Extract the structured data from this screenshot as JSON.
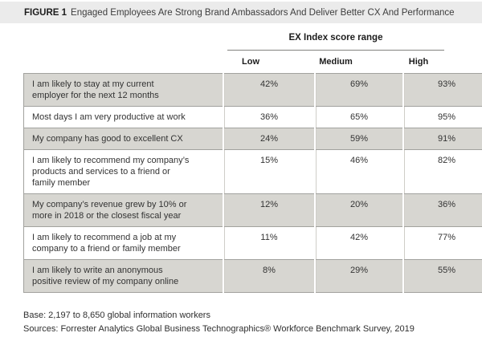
{
  "figure": {
    "label": "FIGURE 1",
    "title": "Engaged Employees Are Strong Brand Ambassadors And Deliver Better CX And Performance"
  },
  "table": {
    "group_header": "EX Index score range",
    "columns": [
      "Low",
      "Medium",
      "High"
    ],
    "rows": [
      {
        "statement": "I am likely to stay at my current\nemployer for the next 12 months",
        "low": "42%",
        "medium": "69%",
        "high": "93%"
      },
      {
        "statement": "Most days I am very productive at work",
        "low": "36%",
        "medium": "65%",
        "high": "95%"
      },
      {
        "statement": "My company has good to excellent CX",
        "low": "24%",
        "medium": "59%",
        "high": "91%"
      },
      {
        "statement": "I am likely to recommend my company’s\nproducts and services to a friend or\nfamily member",
        "low": "15%",
        "medium": "46%",
        "high": "82%"
      },
      {
        "statement": "My company’s revenue grew by 10% or\nmore in 2018 or the closest fiscal year",
        "low": "12%",
        "medium": "20%",
        "high": "36%"
      },
      {
        "statement": "I am likely to recommend a job at my\ncompany to a friend or family member",
        "low": "11%",
        "medium": "42%",
        "high": "77%"
      },
      {
        "statement": "I am likely to write an anonymous\npositive review of my company online",
        "low": "8%",
        "medium": "29%",
        "high": "55%"
      }
    ]
  },
  "footer": {
    "base": "Base: 2,197 to 8,650 global information workers",
    "sources": "Sources: Forrester Analytics Global Business Technographics® Workforce Benchmark Survey, 2019"
  },
  "colors": {
    "title_bar_bg": "#ebebeb",
    "row_alt_bg": "#d7d6d1",
    "row_bg": "#ffffff",
    "border": "#a2a29e",
    "text": "#333333"
  },
  "chart_data": {
    "type": "table",
    "title": "FIGURE 1 Engaged Employees Are Strong Brand Ambassadors And Deliver Better CX And Performance",
    "group_header": "EX Index score range",
    "categories": [
      "I am likely to stay at my current employer for the next 12 months",
      "Most days I am very productive at work",
      "My company has good to excellent CX",
      "I am likely to recommend my company’s products and services to a friend or family member",
      "My company’s revenue grew by 10% or more in 2018 or the closest fiscal year",
      "I am likely to recommend a job at my company to a friend or family member",
      "I am likely to write an anonymous positive review of my company online"
    ],
    "series": [
      {
        "name": "Low",
        "values": [
          42,
          36,
          24,
          15,
          12,
          11,
          8
        ]
      },
      {
        "name": "Medium",
        "values": [
          69,
          65,
          59,
          46,
          20,
          42,
          29
        ]
      },
      {
        "name": "High",
        "values": [
          93,
          95,
          91,
          82,
          36,
          77,
          55
        ]
      }
    ],
    "unit": "%",
    "notes": [
      "Base: 2,197 to 8,650 global information workers",
      "Sources: Forrester Analytics Global Business Technographics® Workforce Benchmark Survey, 2019"
    ]
  }
}
